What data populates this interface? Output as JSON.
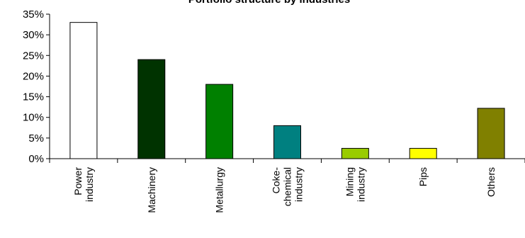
{
  "chart_data": {
    "type": "bar",
    "title": "Portfolio structure by industries",
    "xlabel": "",
    "ylabel": "",
    "ylim": [
      0,
      35
    ],
    "y_ticks": [
      "0%",
      "5%",
      "10%",
      "15%",
      "20%",
      "25%",
      "30%",
      "35%"
    ],
    "grid": false,
    "legend": "none",
    "categories": [
      [
        "Power",
        "industry"
      ],
      [
        "Machinery"
      ],
      [
        "Metallurgy"
      ],
      [
        "Coke-",
        "chemical",
        "industry"
      ],
      [
        "Mining",
        "industry"
      ],
      [
        "Pips"
      ],
      [
        "Others"
      ]
    ],
    "values": [
      33,
      24,
      18,
      8,
      2.5,
      2.5,
      12.2
    ],
    "colors": [
      "#ffffff",
      "#003300",
      "#008000",
      "#008080",
      "#99cc00",
      "#ffff00",
      "#808000"
    ]
  }
}
